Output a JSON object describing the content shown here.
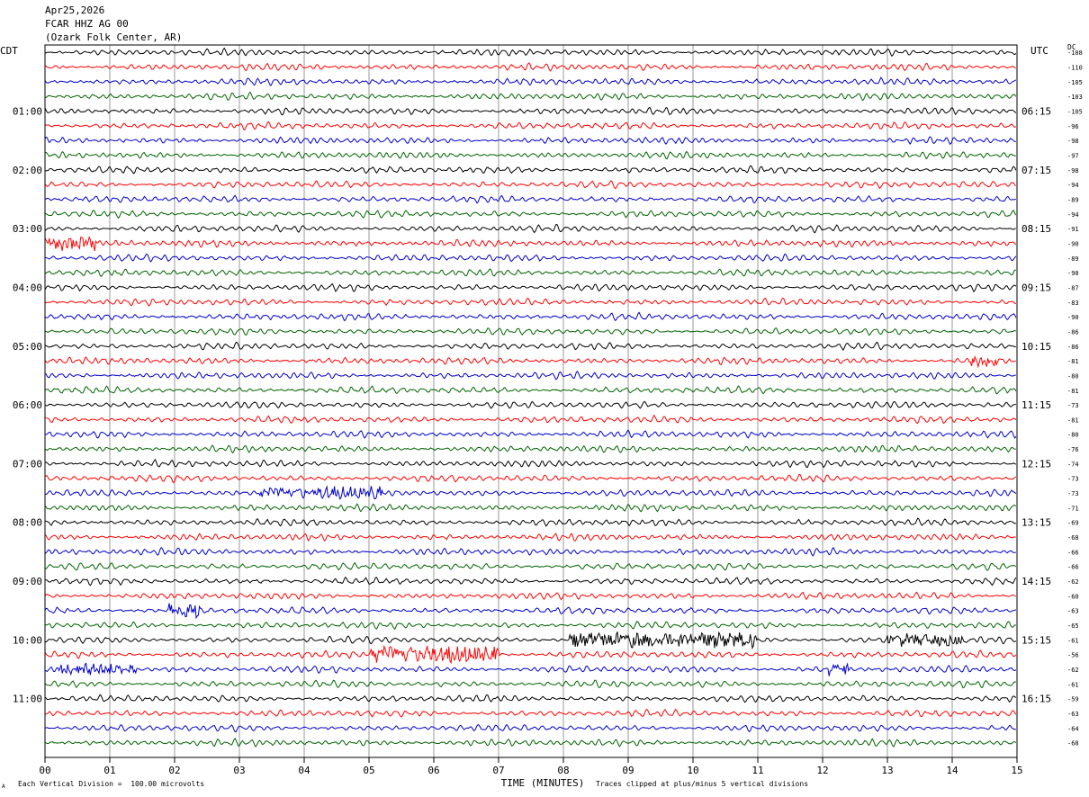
{
  "header": {
    "date": "Apr25,2026",
    "station": "FCAR HHZ AG 00",
    "location": "(Ozark Folk Center, AR)"
  },
  "left_label": "CDT",
  "right_label": "UTC",
  "dc_label": "DC",
  "footer": {
    "scale_note": "Each Vertical Division =  100.00 microvolts",
    "clip_note": "Traces clipped at plus/minus 5 vertical divisions",
    "corner_mark": "A"
  },
  "chart_data": {
    "type": "line",
    "xlabel": "TIME (MINUTES)",
    "x_ticks": [
      "00",
      "01",
      "02",
      "03",
      "04",
      "05",
      "06",
      "07",
      "08",
      "09",
      "10",
      "11",
      "12",
      "13",
      "14",
      "15"
    ],
    "xlim": [
      0,
      15
    ],
    "left_hour_labels": [
      "01:00",
      "02:00",
      "03:00",
      "04:00",
      "05:00",
      "06:00",
      "07:00",
      "08:00",
      "09:00",
      "10:00",
      "11:00"
    ],
    "right_hour_labels": [
      "06:15",
      "07:15",
      "08:15",
      "09:15",
      "10:15",
      "11:15",
      "12:15",
      "13:15",
      "14:15",
      "15:15",
      "16:15"
    ],
    "trace_colors": [
      "#000000",
      "#ff0000",
      "#0000cc",
      "#006400"
    ],
    "dc_offsets": [
      "-108",
      "-110",
      "-105",
      "-103",
      "-105",
      "-96",
      "-98",
      "-97",
      "-98",
      "-94",
      "-89",
      "-94",
      "-91",
      "-90",
      "-89",
      "-90",
      "-87",
      "-83",
      "-90",
      "-86",
      "-86",
      "-81",
      "-80",
      "-81",
      "-73",
      "-81",
      "-80",
      "-76",
      "-74",
      "-73",
      "-73",
      "-71",
      "-69",
      "-68",
      "-66",
      "-66",
      "-62",
      "-60",
      "-63",
      "-65",
      "-61",
      "-56",
      "-62",
      "-61",
      "-59",
      "-63",
      "-64",
      "-68"
    ],
    "traces": 48,
    "events": [
      {
        "trace": 13,
        "start_min": 0.0,
        "end_min": 0.8,
        "amp": 2.2
      },
      {
        "trace": 30,
        "start_min": 3.3,
        "end_min": 5.2,
        "amp": 1.8
      },
      {
        "trace": 38,
        "start_min": 1.9,
        "end_min": 2.4,
        "amp": 2.5
      },
      {
        "trace": 40,
        "start_min": 8.1,
        "end_min": 11.0,
        "amp": 2.4
      },
      {
        "trace": 40,
        "start_min": 13.0,
        "end_min": 14.2,
        "amp": 1.8
      },
      {
        "trace": 41,
        "start_min": 5.0,
        "end_min": 7.0,
        "amp": 2.8
      },
      {
        "trace": 42,
        "start_min": 0.2,
        "end_min": 1.4,
        "amp": 2.0
      },
      {
        "trace": 42,
        "start_min": 12.1,
        "end_min": 12.4,
        "amp": 2.6
      },
      {
        "trace": 21,
        "start_min": 14.3,
        "end_min": 14.7,
        "amp": 2.4
      }
    ]
  }
}
